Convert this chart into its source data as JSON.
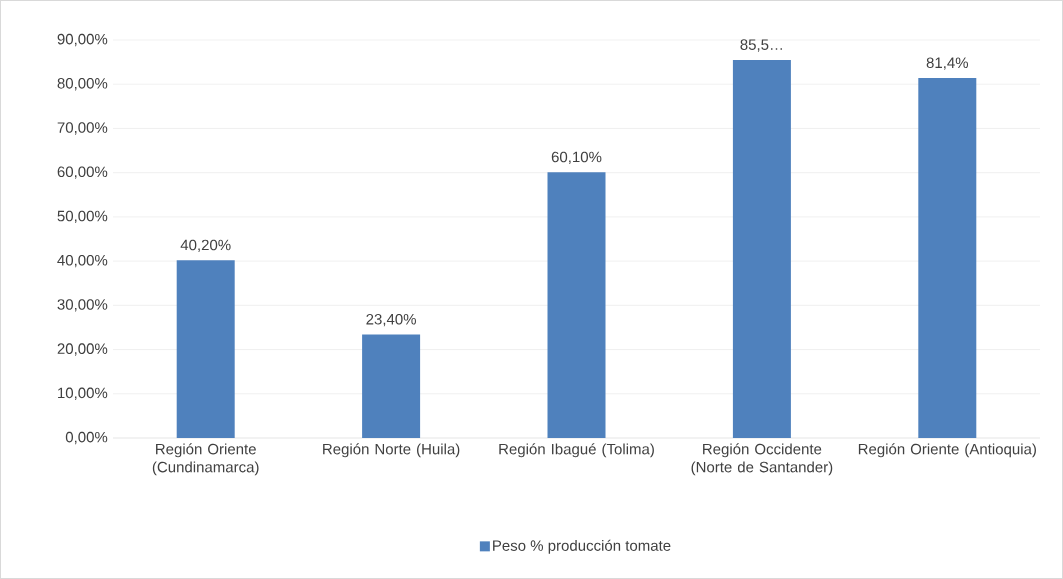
{
  "chart_data": {
    "type": "bar",
    "categories": [
      "Región Oriente (Cundinamarca)",
      "Región Norte (Huila)",
      "Región Ibagué (Tolima)",
      "Región Occidente (Norte de Santander)",
      "Región Oriente (Antioquia)"
    ],
    "series": [
      {
        "name": "Peso % producción tomate",
        "color": "#4f81bd",
        "values": [
          40.2,
          23.4,
          60.1,
          85.5,
          81.4
        ],
        "value_labels": [
          "40,20%",
          "23,40%",
          "60,10%",
          "85,5…",
          "81,4%"
        ]
      }
    ],
    "ylim": [
      0,
      90
    ],
    "yticks": [
      {
        "value": 0,
        "label": "0,00%"
      },
      {
        "value": 10,
        "label": "10,00%"
      },
      {
        "value": 20,
        "label": "20,00%"
      },
      {
        "value": 30,
        "label": "30,00%"
      },
      {
        "value": 40,
        "label": "40,00%"
      },
      {
        "value": 50,
        "label": "50,00%"
      },
      {
        "value": 60,
        "label": "60,00%"
      },
      {
        "value": 70,
        "label": "70,00%"
      },
      {
        "value": 80,
        "label": "80,00%"
      },
      {
        "value": 90,
        "label": "90,00%"
      }
    ],
    "grid": "y",
    "legend": "bottom"
  }
}
